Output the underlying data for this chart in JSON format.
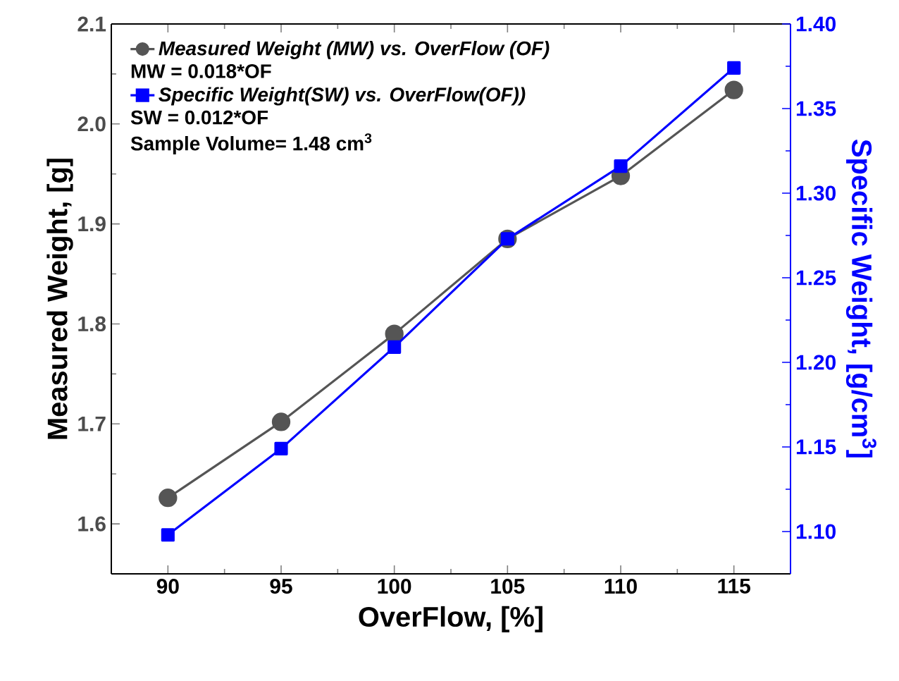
{
  "chart_data": {
    "type": "line",
    "xlabel": "OverFlow, [%]",
    "ylabel": "Measured Weight, [g]",
    "y2label": "Specific Weight, [g/cm$^{3}$]",
    "x": [
      90,
      95,
      100,
      105,
      110,
      115
    ],
    "series": [
      {
        "name": "Measured Weight (MW) vs. OverFlow (OF)",
        "color": "#555555",
        "marker": "circle",
        "values": [
          1.626,
          1.702,
          1.79,
          1.885,
          1.948,
          2.034
        ]
      },
      {
        "name": "Specific Weight(SW) vs. OverFlow(OF))",
        "color": "#0000ff",
        "marker": "square",
        "axis": "y2",
        "values": [
          1.098,
          1.149,
          1.209,
          1.273,
          1.316,
          1.374
        ]
      }
    ],
    "annotations": [
      "MW = 0.018*OF",
      "SW = 0.012*OF",
      "Sample Volume= 1.48 cm$^{3}$"
    ],
    "xlim": [
      87.5,
      117.5
    ],
    "xticks": [
      90,
      95,
      100,
      105,
      110,
      115
    ],
    "ylim": [
      1.55,
      2.1
    ],
    "yticks": [
      {
        "value": 1.6,
        "label": "1.6"
      },
      {
        "value": 1.7,
        "label": "1.7"
      },
      {
        "value": 1.8,
        "label": "1.8"
      },
      {
        "value": 1.9,
        "label": "1.9"
      },
      {
        "value": 2.0,
        "label": "2.0"
      },
      {
        "value": 2.1,
        "label": "2.1"
      }
    ],
    "y2lim": [
      1.075,
      1.4
    ],
    "y2ticks": [
      {
        "value": 1.1,
        "label": "1.10"
      },
      {
        "value": 1.15,
        "label": "1.15"
      },
      {
        "value": 1.2,
        "label": "1.20"
      },
      {
        "value": 1.25,
        "label": "1.25"
      },
      {
        "value": 1.3,
        "label": "1.30"
      },
      {
        "value": 1.35,
        "label": "1.35"
      },
      {
        "value": 1.4,
        "label": "1.40"
      }
    ],
    "legend": "top left",
    "grid": false
  }
}
